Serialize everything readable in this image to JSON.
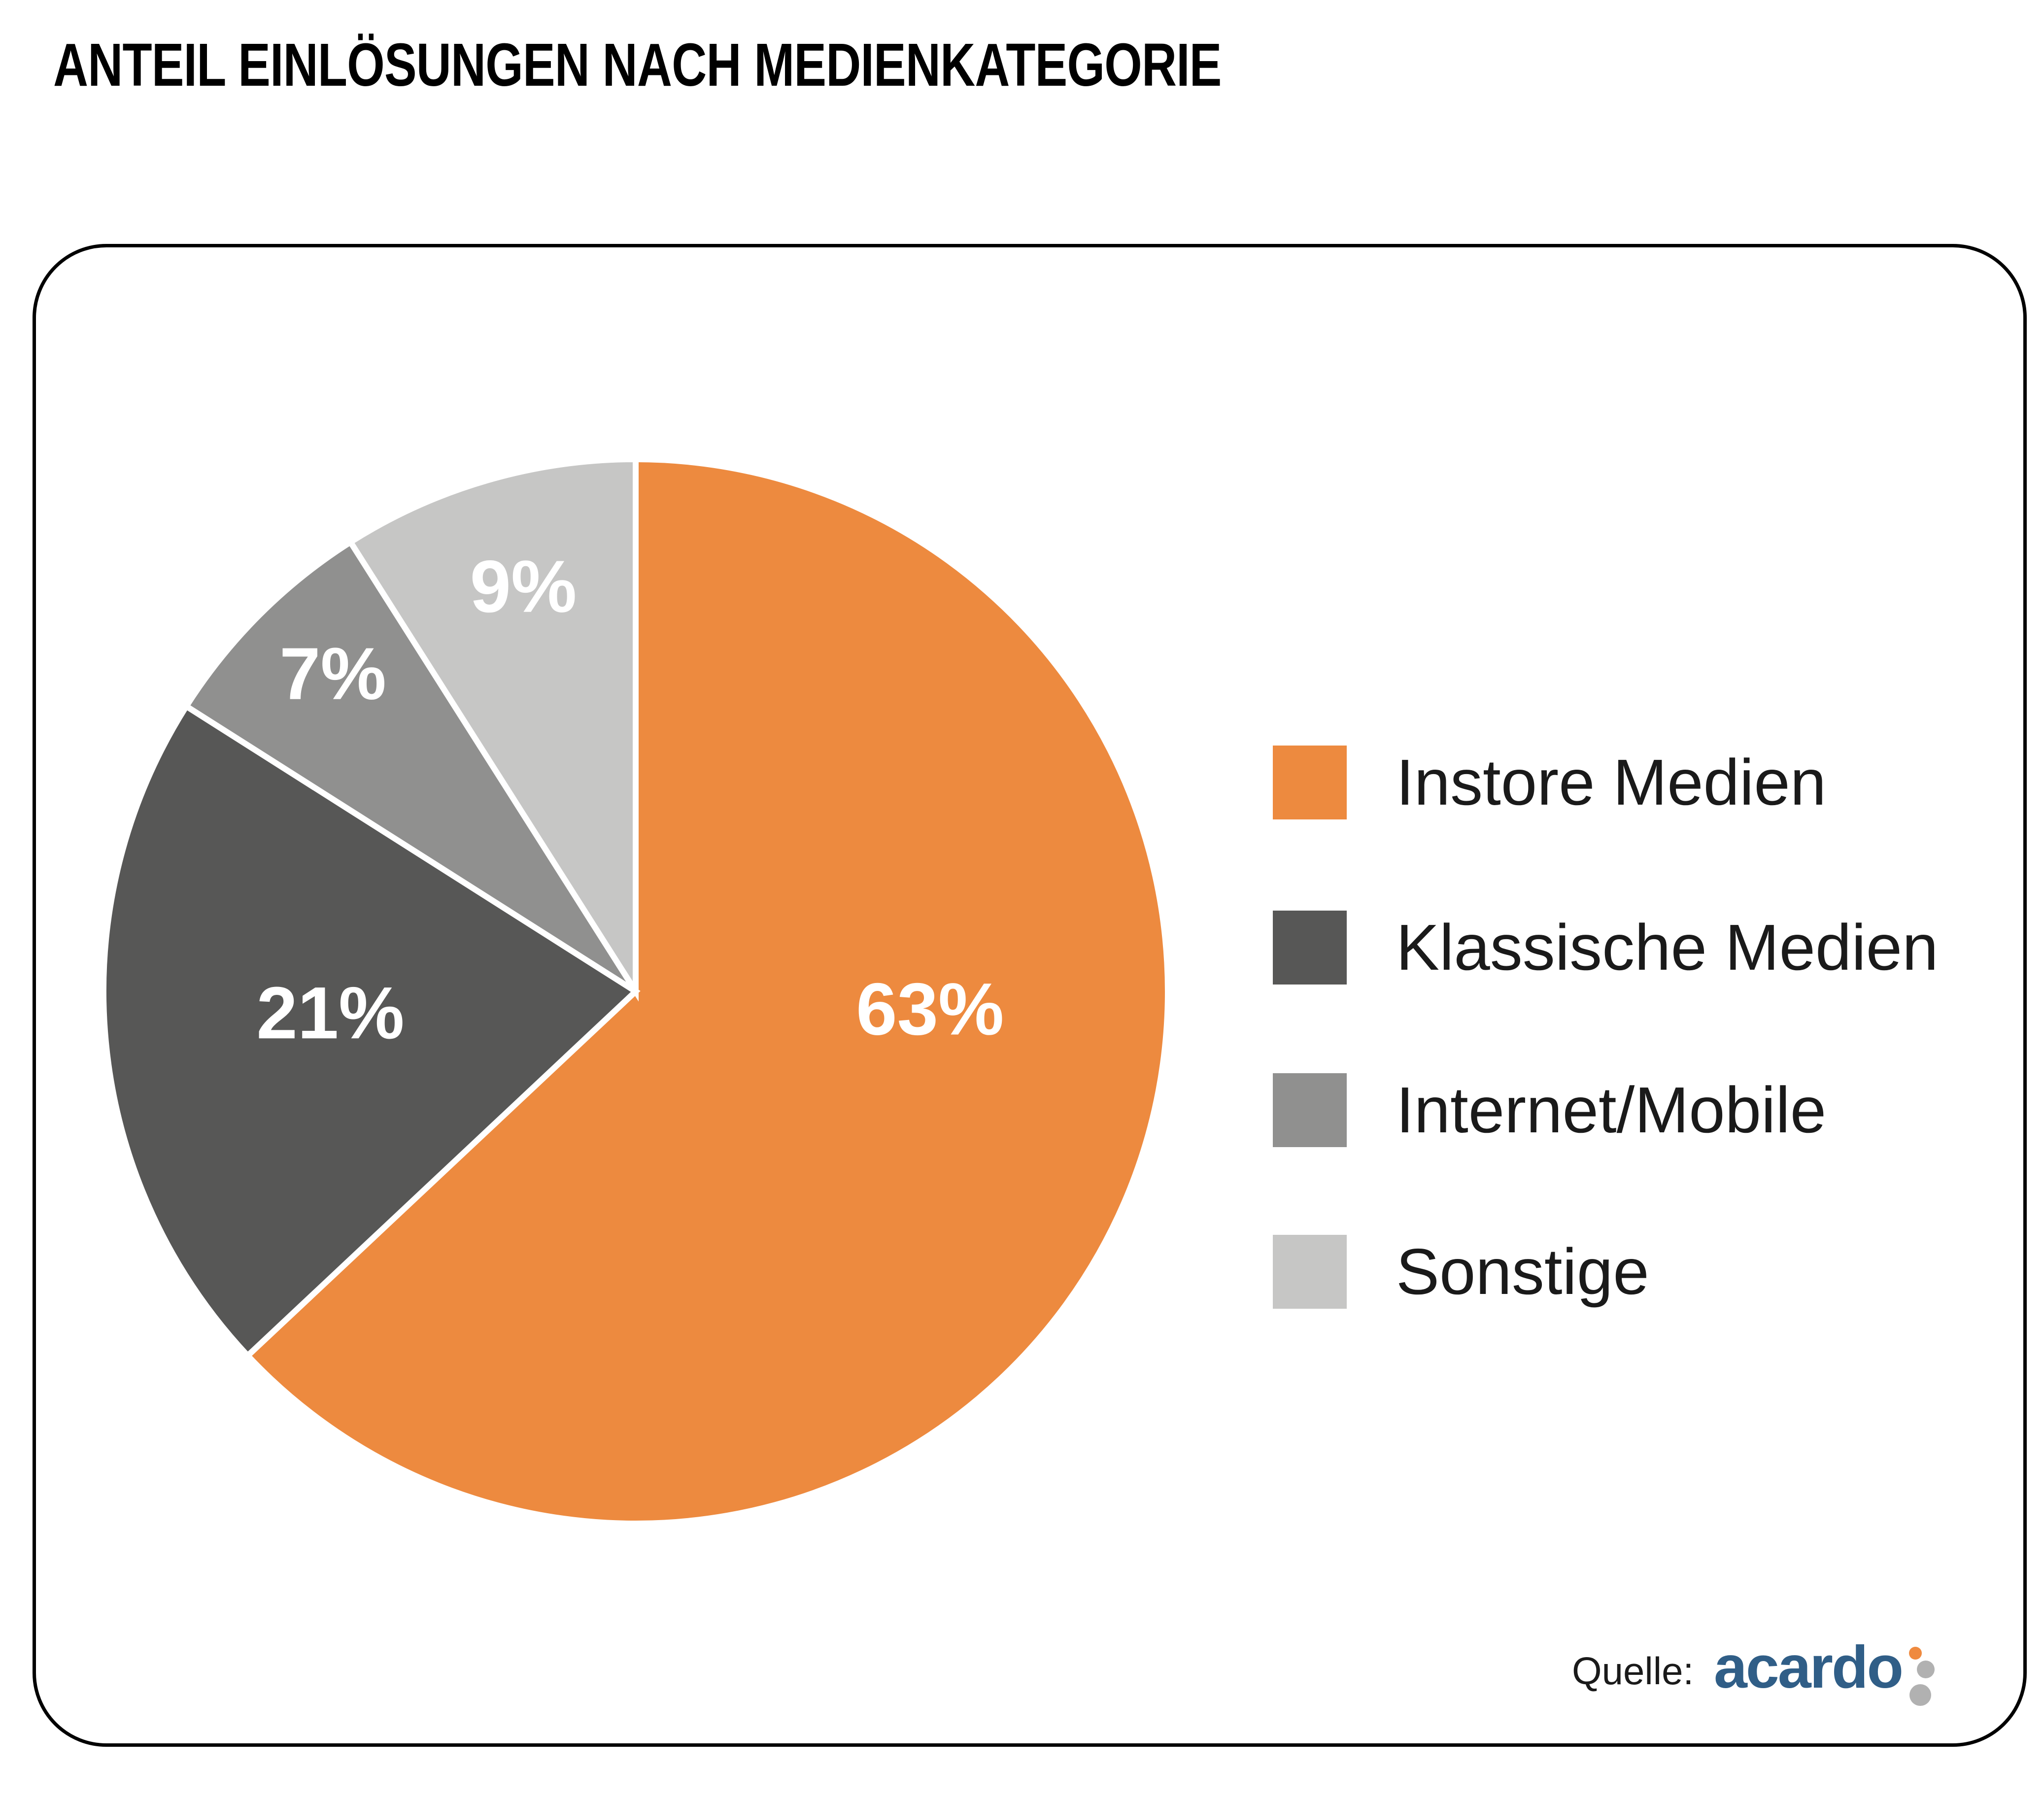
{
  "chart_data": {
    "type": "pie",
    "title": "ANTEIL EINLÖSUNGEN NACH MEDIENKATEGORIE",
    "categories": [
      "Instore Medien",
      "Klassische Medien",
      "Internet/Mobile",
      "Sonstige"
    ],
    "values": [
      63,
      21,
      7,
      9
    ],
    "labels": [
      "63%",
      "21%",
      "7%",
      "9%"
    ],
    "colors": [
      "#ED8A3F",
      "#575756",
      "#90908F",
      "#C6C6C5"
    ],
    "label_color": "#FFFFFF",
    "slice_gap_color": "#FFFFFF",
    "start_angle_deg": 0,
    "direction": "clockwise",
    "legend_position": "right",
    "source": {
      "label": "Quelle:",
      "brand": "acardo"
    }
  },
  "logo": {
    "brand_text_color": "#305E87",
    "dot_colors": [
      "#EF8A3F",
      "#B1B1B1",
      "#B1B1B1"
    ]
  }
}
